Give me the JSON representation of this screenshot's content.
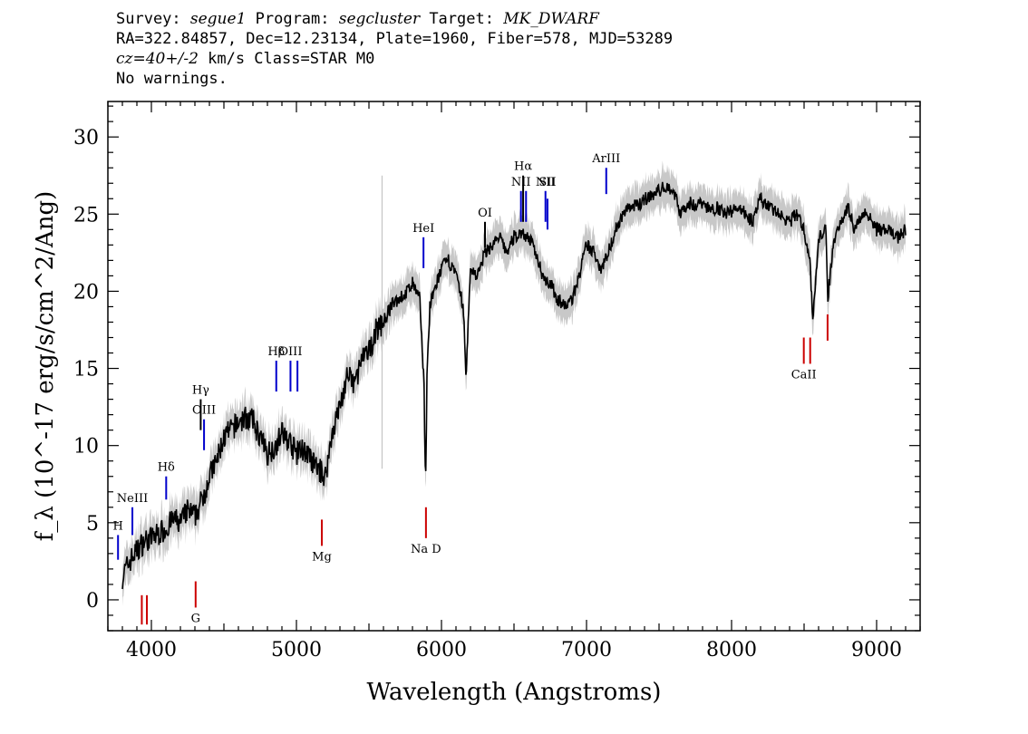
{
  "header": {
    "line1": {
      "survey_label": "Survey: ",
      "survey": "segue1",
      "program_label": " Program: ",
      "program": "segcluster",
      "target_label": " Target: ",
      "target": "MK_DWARF"
    },
    "line2": "RA=322.84857, Dec=12.23134, Plate=1960, Fiber=578, MJD=53289",
    "line3": {
      "cz": "cz=40+/-2",
      "rest": " km/s Class=STAR M0"
    },
    "line4": "No warnings."
  },
  "chart_data": {
    "type": "line",
    "xlabel": "Wavelength (Angstroms)",
    "ylabel": "f_λ (10^-17 erg/s/cm^2/Ang)",
    "xlim": [
      3700,
      9300
    ],
    "ylim": [
      -2,
      32.3
    ],
    "xticks": [
      "4000",
      "5000",
      "6000",
      "7000",
      "8000",
      "9000"
    ],
    "yticks": [
      "0",
      "5",
      "10",
      "15",
      "20",
      "25",
      "30"
    ],
    "series": [
      {
        "color": "#000000",
        "x": [
          3800,
          3850,
          3900,
          3950,
          4000,
          4050,
          4100,
          4150,
          4200,
          4250,
          4300,
          4350,
          4400,
          4450,
          4500,
          4550,
          4600,
          4650,
          4700,
          4750,
          4800,
          4850,
          4900,
          4950,
          5000,
          5050,
          5100,
          5150,
          5200,
          5250,
          5300,
          5350,
          5400,
          5450,
          5500,
          5550,
          5600,
          5650,
          5700,
          5750,
          5800,
          5850,
          5880,
          5890,
          5900,
          5920,
          5950,
          6000,
          6050,
          6100,
          6150,
          6170,
          6200,
          6250,
          6300,
          6350,
          6400,
          6450,
          6500,
          6550,
          6600,
          6650,
          6700,
          6750,
          6800,
          6850,
          6900,
          6950,
          7000,
          7050,
          7100,
          7150,
          7200,
          7250,
          7300,
          7350,
          7400,
          7450,
          7500,
          7550,
          7600,
          7650,
          7700,
          7750,
          7800,
          7850,
          7900,
          7950,
          8000,
          8050,
          8100,
          8150,
          8200,
          8250,
          8300,
          8350,
          8400,
          8450,
          8500,
          8540,
          8560,
          8600,
          8650,
          8662,
          8700,
          8750,
          8800,
          8850,
          8900,
          8950,
          9000,
          9050,
          9100,
          9150,
          9200
        ],
        "y": [
          1.5,
          2.5,
          3.2,
          3.8,
          4.0,
          4.3,
          4.6,
          5.2,
          5.0,
          5.8,
          5.4,
          6.5,
          8.0,
          9.0,
          10.5,
          11.0,
          11.5,
          11.8,
          11.6,
          10.5,
          9.5,
          9.9,
          10.8,
          10.3,
          9.5,
          9.8,
          9.0,
          8.5,
          8.0,
          11.0,
          12.5,
          14.5,
          14.0,
          15.5,
          16.0,
          17.5,
          18.0,
          19.0,
          19.5,
          19.8,
          20.5,
          19.5,
          14.0,
          7.0,
          14.5,
          19.0,
          20.0,
          21.5,
          22.0,
          21.0,
          19.0,
          14.5,
          21.5,
          21.0,
          22.5,
          23.0,
          23.5,
          22.5,
          23.5,
          23.8,
          23.5,
          22.5,
          21.0,
          20.5,
          19.5,
          19.0,
          19.5,
          21.0,
          23.0,
          22.5,
          21.5,
          22.5,
          24.0,
          25.0,
          25.5,
          25.5,
          26.0,
          26.2,
          26.5,
          26.8,
          26.5,
          25.0,
          25.8,
          25.5,
          25.8,
          25.2,
          25.5,
          25.0,
          25.2,
          25.5,
          25.0,
          24.5,
          26.0,
          25.5,
          25.2,
          24.8,
          24.5,
          25.0,
          24.0,
          22.0,
          18.0,
          23.5,
          24.0,
          19.5,
          23.0,
          24.5,
          25.5,
          24.0,
          25.0,
          25.0,
          24.0,
          24.0,
          23.8,
          23.5,
          24.0
        ]
      }
    ],
    "lines": [
      {
        "label": "H",
        "wave": 3770,
        "y1": 2.6,
        "y2": 4.2,
        "color": "#0000cc",
        "lpos": "above",
        "ly": 4.2
      },
      {
        "label": "NeIII",
        "wave": 3869,
        "y1": 4.2,
        "y2": 6.0,
        "color": "#0000cc",
        "lpos": "above",
        "ly": 6.0
      },
      {
        "label": "Hδ",
        "wave": 4102,
        "y1": 6.5,
        "y2": 8.0,
        "color": "#0000cc",
        "lpos": "above",
        "ly": 8.0
      },
      {
        "label": "Hγ",
        "wave": 4340,
        "y1": 11.0,
        "y2": 13.0,
        "color": "#000000",
        "lpos": "above",
        "ly": 13.0
      },
      {
        "label": "OIII",
        "wave": 4363,
        "y1": 9.7,
        "y2": 11.7,
        "color": "#0000cc",
        "lpos": "above",
        "ly": 11.7
      },
      {
        "label": "Hβ",
        "wave": 4861,
        "y1": 13.5,
        "y2": 15.5,
        "color": "#0000cc",
        "lpos": "above",
        "ly": 15.5
      },
      {
        "label": "OIII",
        "wave": 4959,
        "y1": 13.5,
        "y2": 15.5,
        "color": "#0000cc",
        "lpos": "above",
        "ly": 15.5
      },
      {
        "label": "",
        "wave": 5007,
        "y1": 13.5,
        "y2": 15.5,
        "color": "#0000cc",
        "lpos": "none",
        "ly": 0
      },
      {
        "label": "HeI",
        "wave": 5876,
        "y1": 21.5,
        "y2": 23.5,
        "color": "#0000cc",
        "lpos": "above",
        "ly": 23.5
      },
      {
        "label": "OI",
        "wave": 6300,
        "y1": 22.8,
        "y2": 24.5,
        "color": "#000000",
        "lpos": "above",
        "ly": 24.5
      },
      {
        "label": "NII",
        "wave": 6548,
        "y1": 24.5,
        "y2": 26.5,
        "color": "#0000cc",
        "lpos": "above",
        "ly": 26.5
      },
      {
        "label": "Hα",
        "wave": 6563,
        "y1": 24.5,
        "y2": 27.5,
        "color": "#000000",
        "lpos": "above",
        "ly": 27.5
      },
      {
        "label": "",
        "wave": 6583,
        "y1": 24.5,
        "y2": 26.5,
        "color": "#0000cc",
        "lpos": "none",
        "ly": 0
      },
      {
        "label": "NII",
        "wave": 6717,
        "y1": 24.5,
        "y2": 26.5,
        "color": "#0000cc",
        "lpos": "above",
        "ly": 26.5
      },
      {
        "label": "SII",
        "wave": 6731,
        "y1": 24.0,
        "y2": 26.0,
        "color": "#0000cc",
        "lpos": "above",
        "ly": 26.5
      },
      {
        "label": "ArIII",
        "wave": 7136,
        "y1": 26.3,
        "y2": 28.0,
        "color": "#0000cc",
        "lpos": "above",
        "ly": 28.0
      },
      {
        "label": "G",
        "wave": 4305,
        "y1": -0.5,
        "y2": 1.2,
        "color": "#cc0000",
        "lpos": "below",
        "ly": -0.5
      },
      {
        "label": "",
        "wave": 3934,
        "y1": -1.6,
        "y2": 0.3,
        "color": "#cc0000",
        "lpos": "none",
        "ly": 0
      },
      {
        "label": "",
        "wave": 3969,
        "y1": -1.6,
        "y2": 0.3,
        "color": "#cc0000",
        "lpos": "none",
        "ly": 0
      },
      {
        "label": "Mg",
        "wave": 5175,
        "y1": 3.5,
        "y2": 5.2,
        "color": "#cc0000",
        "lpos": "below",
        "ly": 3.5
      },
      {
        "label": "Na D",
        "wave": 5893,
        "y1": 4.0,
        "y2": 6.0,
        "color": "#cc0000",
        "lpos": "below",
        "ly": 4.0
      },
      {
        "label": "CaII",
        "wave": 8498,
        "y1": 15.3,
        "y2": 17.0,
        "color": "#cc0000",
        "lpos": "below",
        "ly": 15.3
      },
      {
        "label": "",
        "wave": 8542,
        "y1": 15.3,
        "y2": 17.0,
        "color": "#cc0000",
        "lpos": "none",
        "ly": 0
      },
      {
        "label": "",
        "wave": 8662,
        "y1": 16.8,
        "y2": 18.5,
        "color": "#cc0000",
        "lpos": "none",
        "ly": 0
      }
    ]
  }
}
